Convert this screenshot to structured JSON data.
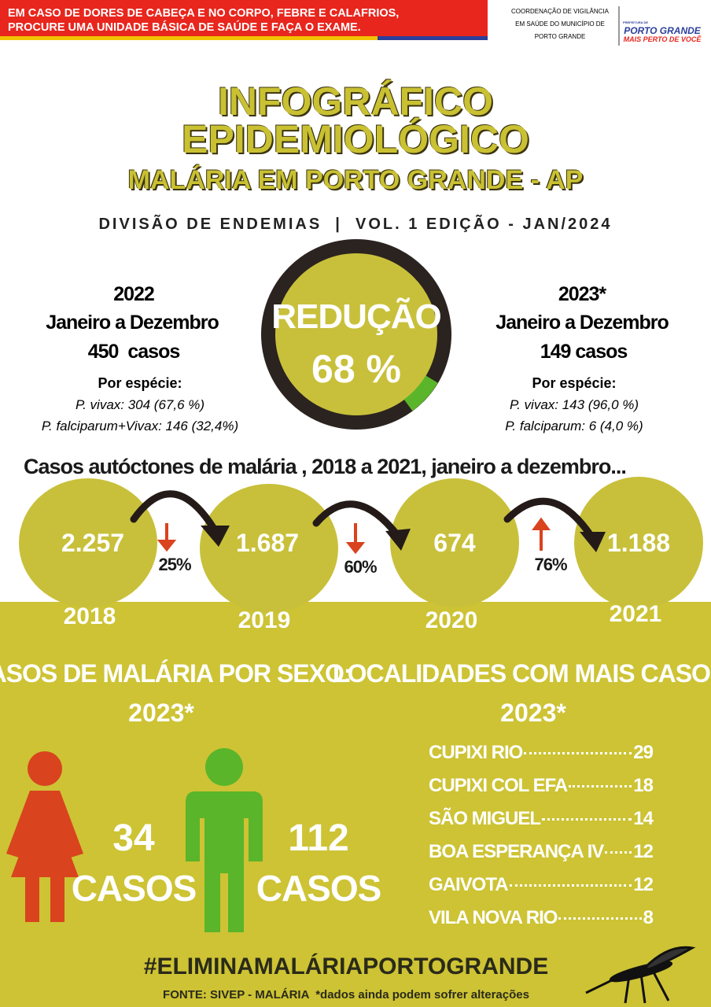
{
  "banner": {
    "lines": [
      "EM CASO DE DORES DE CABEÇA E NO CORPO, FEBRE E CALAFRIOS,",
      "PROCURE UMA UNIDADE BÁSICA DE SAÚDE E FAÇA O EXAME."
    ]
  },
  "agency": {
    "lines": [
      "COORDENAÇÃO DE VIGILÂNCIA",
      "EM SAÚDE DO MUNICÍPIO DE",
      "PORTO GRANDE"
    ]
  },
  "logo": {
    "small": "PREFEITURA DE",
    "name": "PORTO GRANDE",
    "slogan": "MAIS PERTO DE VOCÊ"
  },
  "title": {
    "lines": [
      "INFOGRÁFICO",
      "EPIDEMIOLÓGICO"
    ],
    "subtitle": "MALÁRIA EM PORTO GRANDE - AP"
  },
  "edition": "DIVISÃO DE ENDEMIAS  |  VOL. 1 EDIÇÃO - JAN/2024",
  "left": {
    "year": "2022",
    "period": "Janeiro a Dezembro",
    "cases": "450  casos",
    "species_label": "Por espécie:",
    "species": [
      "P. vivax: 304 (67,6 %)",
      "P. falciparum+Vivax: 146 (32,4%)"
    ]
  },
  "reduction": {
    "label": "REDUÇÃO",
    "value": "68 %"
  },
  "right": {
    "year": "2023*",
    "period": "Janeiro a Dezembro",
    "cases": "149 casos",
    "species_label": "Por espécie:",
    "species": [
      "P. vivax: 143 (96,0 %)",
      "P. falciparum: 6 (4,0 %)"
    ]
  },
  "yearly": {
    "title": "Casos autóctones de malária , 2018 a 2021, janeiro a dezembro...",
    "years": [
      {
        "year": "2018",
        "cases": "2.257"
      },
      {
        "year": "2019",
        "cases": "1.687"
      },
      {
        "year": "2020",
        "cases": "674"
      },
      {
        "year": "2021",
        "cases": "1.188"
      }
    ],
    "changes": [
      "25%",
      "60%",
      "76%"
    ]
  },
  "sex": {
    "title": "CASOS DE MALÁRIA POR SEXO:",
    "year": "2023*",
    "female": {
      "count": "34",
      "unit": "CASOS"
    },
    "male": {
      "count": "112",
      "unit": "CASOS"
    }
  },
  "localities": {
    "title": "LOCALIDADES COM MAIS CASOS:",
    "year": "2023*",
    "items": [
      {
        "name": "CUPIXI RIO",
        "cases": "29"
      },
      {
        "name": "CUPIXI COL EFA",
        "cases": "18"
      },
      {
        "name": "SÃO MIGUEL",
        "cases": "14"
      },
      {
        "name": "BOA ESPERANÇA IV",
        "cases": "12"
      },
      {
        "name": "GAIVOTA",
        "cases": "12"
      },
      {
        "name": "VILA NOVA RIO",
        "cases": "8"
      }
    ]
  },
  "hashtag": "#ELIMINAMALÁRIAPORTOGRANDE",
  "footer": "FONTE: SIVEP - MALÁRIA  *dados ainda podem sofrer alterações"
}
